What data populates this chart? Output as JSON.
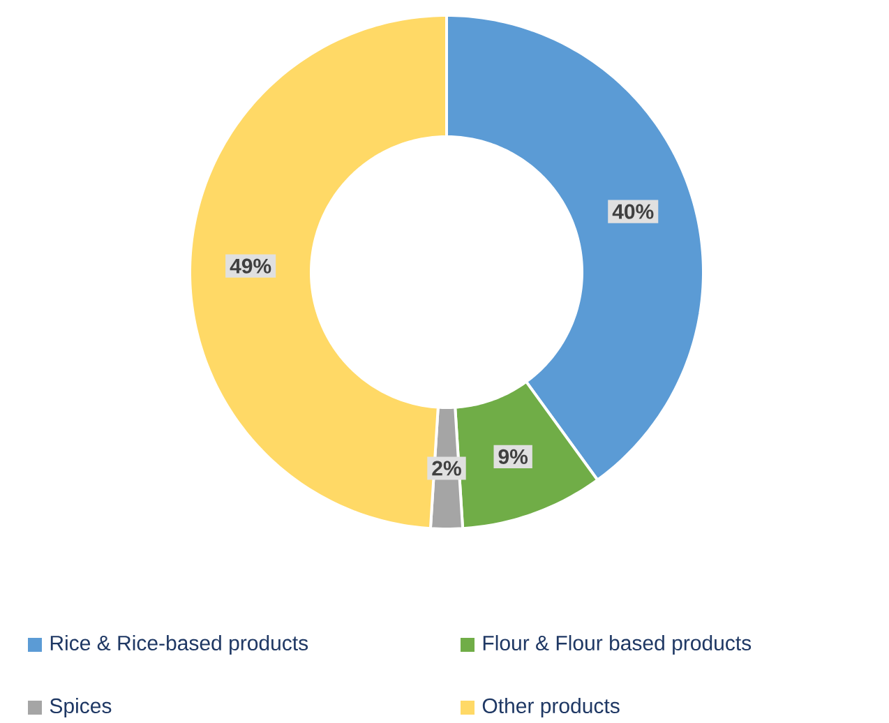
{
  "chart_data": {
    "type": "donut",
    "categories": [
      "Rice & Rice-based products",
      "Flour & Flour based products",
      "Spices",
      "Other products"
    ],
    "values": [
      40,
      9,
      2,
      49
    ],
    "colors": [
      "#5b9bd5",
      "#70ad47",
      "#a5a5a5",
      "#ffd966"
    ],
    "value_labels": [
      "40%",
      "9%",
      "2%",
      "49%"
    ],
    "legend": "bottom"
  }
}
